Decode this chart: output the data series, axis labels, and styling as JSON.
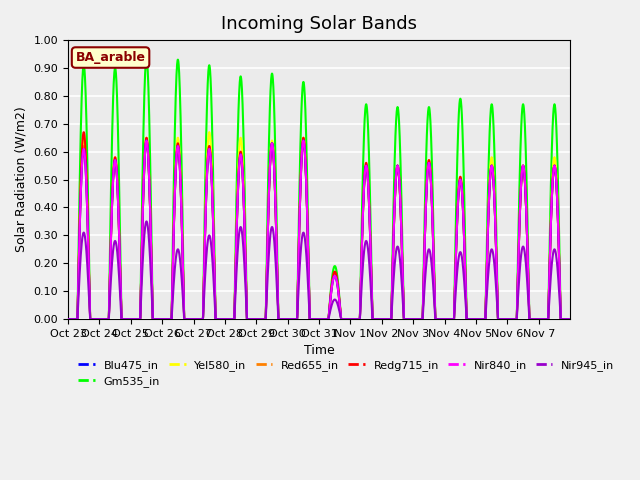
{
  "title": "Incoming Solar Bands",
  "ylabel": "Solar Radiation (W/m2)",
  "xlabel": "Time",
  "annotation": "BA_arable",
  "ylim": [
    0.0,
    1.0
  ],
  "yticks": [
    0.0,
    0.1,
    0.2,
    0.3,
    0.4,
    0.5,
    0.6,
    0.7,
    0.8,
    0.9,
    1.0
  ],
  "xtick_labels": [
    "Oct 23",
    "Oct 24",
    "Oct 25",
    "Oct 26",
    "Oct 27",
    "Oct 28",
    "Oct 29",
    "Oct 30",
    "Oct 31",
    "Nov 1",
    "Nov 2",
    "Nov 3",
    "Nov 4",
    "Nov 5",
    "Nov 6",
    "Nov 7"
  ],
  "series": {
    "Blu475_in": {
      "color": "#0000FF",
      "lw": 1.5
    },
    "Gm535_in": {
      "color": "#00FF00",
      "lw": 1.5
    },
    "Yel580_in": {
      "color": "#FFFF00",
      "lw": 1.5
    },
    "Red655_in": {
      "color": "#FF8000",
      "lw": 1.5
    },
    "Redg715_in": {
      "color": "#FF0000",
      "lw": 1.5
    },
    "Nir840_in": {
      "color": "#FF00FF",
      "lw": 1.5
    },
    "Nir945_in": {
      "color": "#9900CC",
      "lw": 1.5
    }
  },
  "bg_color": "#EBEBEB",
  "grid_color": "#FFFFFF",
  "title_fontsize": 13,
  "label_fontsize": 9,
  "tick_fontsize": 8,
  "green_peaks": [
    0.91,
    0.9,
    0.935,
    0.93,
    0.91,
    0.87,
    0.88,
    0.85,
    0.19,
    0.77,
    0.76,
    0.76,
    0.79,
    0.77,
    0.77,
    0.77
  ],
  "red_peaks": [
    0.67,
    0.58,
    0.65,
    0.63,
    0.62,
    0.6,
    0.63,
    0.65,
    0.17,
    0.56,
    0.55,
    0.57,
    0.51,
    0.55,
    0.55,
    0.55
  ],
  "yellow_peaks": [
    0.65,
    0.58,
    0.65,
    0.65,
    0.67,
    0.65,
    0.64,
    0.65,
    0.16,
    0.55,
    0.55,
    0.57,
    0.51,
    0.58,
    0.55,
    0.58
  ],
  "orange_peaks": [
    0.62,
    0.57,
    0.64,
    0.62,
    0.62,
    0.59,
    0.63,
    0.64,
    0.16,
    0.55,
    0.55,
    0.56,
    0.5,
    0.55,
    0.55,
    0.55
  ],
  "blue_peaks": [
    0.61,
    0.57,
    0.64,
    0.62,
    0.61,
    0.59,
    0.63,
    0.64,
    0.155,
    0.55,
    0.55,
    0.56,
    0.5,
    0.55,
    0.55,
    0.55
  ],
  "pink_peaks": [
    0.61,
    0.57,
    0.64,
    0.62,
    0.61,
    0.59,
    0.63,
    0.64,
    0.155,
    0.55,
    0.55,
    0.56,
    0.5,
    0.55,
    0.55,
    0.55
  ],
  "purple_peaks": [
    0.31,
    0.28,
    0.35,
    0.25,
    0.3,
    0.33,
    0.33,
    0.31,
    0.07,
    0.28,
    0.26,
    0.25,
    0.24,
    0.25,
    0.26,
    0.25
  ]
}
